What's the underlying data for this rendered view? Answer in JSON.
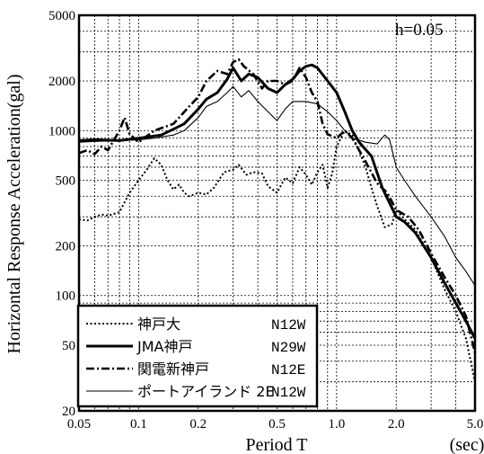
{
  "chart_data": {
    "type": "line",
    "title": "",
    "xlabel": "Period T",
    "xunit": "(sec)",
    "ylabel": "Horizontal Response Acceleration(gal)",
    "annotation": "h=0.05",
    "xscale": "log",
    "yscale": "log",
    "xlim": [
      0.05,
      5.0
    ],
    "ylim": [
      20,
      5000
    ],
    "grid": true,
    "legend_position": "bottom-left",
    "x_ticks": [
      0.05,
      0.1,
      0.2,
      0.5,
      1.0,
      2.0,
      5.0
    ],
    "x_tick_labels": [
      "0.05",
      "0.1",
      "0.2",
      "0.5",
      "1.0",
      "2.0",
      "5.0"
    ],
    "y_ticks": [
      20,
      50,
      100,
      200,
      500,
      1000,
      2000,
      5000
    ],
    "y_tick_labels": [
      "20",
      "50",
      "100",
      "200",
      "500",
      "1000",
      "2000",
      "5000"
    ],
    "series": [
      {
        "name": "神戸大",
        "component": "N12W",
        "style": "dotted",
        "points": [
          [
            0.05,
            290
          ],
          [
            0.055,
            285
          ],
          [
            0.06,
            300
          ],
          [
            0.065,
            310
          ],
          [
            0.07,
            305
          ],
          [
            0.08,
            320
          ],
          [
            0.09,
            420
          ],
          [
            0.1,
            500
          ],
          [
            0.11,
            580
          ],
          [
            0.12,
            680
          ],
          [
            0.13,
            620
          ],
          [
            0.14,
            500
          ],
          [
            0.15,
            440
          ],
          [
            0.16,
            470
          ],
          [
            0.17,
            420
          ],
          [
            0.18,
            400
          ],
          [
            0.2,
            420
          ],
          [
            0.22,
            410
          ],
          [
            0.24,
            450
          ],
          [
            0.27,
            560
          ],
          [
            0.3,
            580
          ],
          [
            0.32,
            620
          ],
          [
            0.35,
            540
          ],
          [
            0.38,
            560
          ],
          [
            0.42,
            550
          ],
          [
            0.45,
            460
          ],
          [
            0.5,
            420
          ],
          [
            0.55,
            520
          ],
          [
            0.6,
            480
          ],
          [
            0.65,
            600
          ],
          [
            0.7,
            540
          ],
          [
            0.75,
            470
          ],
          [
            0.8,
            560
          ],
          [
            0.85,
            620
          ],
          [
            0.9,
            450
          ],
          [
            0.95,
            550
          ],
          [
            1.0,
            800
          ],
          [
            1.1,
            1000
          ],
          [
            1.2,
            940
          ],
          [
            1.3,
            750
          ],
          [
            1.4,
            600
          ],
          [
            1.5,
            450
          ],
          [
            1.6,
            350
          ],
          [
            1.75,
            260
          ],
          [
            1.9,
            270
          ],
          [
            2.0,
            330
          ],
          [
            2.2,
            290
          ],
          [
            2.5,
            250
          ],
          [
            3.0,
            170
          ],
          [
            3.5,
            110
          ],
          [
            4.0,
            80
          ],
          [
            4.5,
            55
          ],
          [
            5.0,
            30
          ]
        ]
      },
      {
        "name": "JMA神戸",
        "component": "N29W",
        "style": "thick",
        "points": [
          [
            0.05,
            870
          ],
          [
            0.06,
            880
          ],
          [
            0.08,
            870
          ],
          [
            0.1,
            900
          ],
          [
            0.13,
            940
          ],
          [
            0.15,
            1020
          ],
          [
            0.17,
            1100
          ],
          [
            0.2,
            1350
          ],
          [
            0.22,
            1550
          ],
          [
            0.25,
            1700
          ],
          [
            0.28,
            2050
          ],
          [
            0.3,
            2400
          ],
          [
            0.33,
            2000
          ],
          [
            0.36,
            2200
          ],
          [
            0.4,
            2100
          ],
          [
            0.45,
            1800
          ],
          [
            0.5,
            1700
          ],
          [
            0.55,
            1900
          ],
          [
            0.6,
            2050
          ],
          [
            0.65,
            2300
          ],
          [
            0.7,
            2450
          ],
          [
            0.75,
            2500
          ],
          [
            0.8,
            2400
          ],
          [
            0.9,
            2000
          ],
          [
            1.0,
            1700
          ],
          [
            1.1,
            1300
          ],
          [
            1.2,
            1000
          ],
          [
            1.3,
            850
          ],
          [
            1.5,
            700
          ],
          [
            1.7,
            450
          ],
          [
            1.8,
            390
          ],
          [
            2.0,
            300
          ],
          [
            2.2,
            280
          ],
          [
            2.5,
            240
          ],
          [
            3.0,
            170
          ],
          [
            3.5,
            120
          ],
          [
            4.0,
            90
          ],
          [
            4.5,
            70
          ],
          [
            5.0,
            55
          ]
        ]
      },
      {
        "name": "関電新神戸",
        "component": "N12E",
        "style": "dashdot",
        "points": [
          [
            0.05,
            730
          ],
          [
            0.055,
            760
          ],
          [
            0.06,
            720
          ],
          [
            0.065,
            800
          ],
          [
            0.07,
            760
          ],
          [
            0.08,
            1000
          ],
          [
            0.085,
            1200
          ],
          [
            0.09,
            950
          ],
          [
            0.1,
            850
          ],
          [
            0.12,
            1000
          ],
          [
            0.15,
            1100
          ],
          [
            0.18,
            1400
          ],
          [
            0.2,
            1600
          ],
          [
            0.22,
            2000
          ],
          [
            0.25,
            2300
          ],
          [
            0.28,
            2200
          ],
          [
            0.3,
            2600
          ],
          [
            0.32,
            2700
          ],
          [
            0.34,
            2450
          ],
          [
            0.38,
            2200
          ],
          [
            0.42,
            1800
          ],
          [
            0.45,
            2000
          ],
          [
            0.5,
            2000
          ],
          [
            0.55,
            1900
          ],
          [
            0.6,
            2000
          ],
          [
            0.65,
            2400
          ],
          [
            0.7,
            2100
          ],
          [
            0.75,
            1700
          ],
          [
            0.8,
            1500
          ],
          [
            0.85,
            1100
          ],
          [
            0.9,
            950
          ],
          [
            1.0,
            900
          ],
          [
            1.1,
            1000
          ],
          [
            1.2,
            900
          ],
          [
            1.4,
            650
          ],
          [
            1.6,
            480
          ],
          [
            1.8,
            420
          ],
          [
            2.0,
            330
          ],
          [
            2.3,
            300
          ],
          [
            2.6,
            250
          ],
          [
            3.0,
            180
          ],
          [
            3.5,
            130
          ],
          [
            4.0,
            100
          ],
          [
            4.5,
            75
          ],
          [
            5.0,
            45
          ]
        ]
      },
      {
        "name": "ポートアイランド 2E",
        "component": "N12W",
        "style": "thin",
        "points": [
          [
            0.05,
            850
          ],
          [
            0.06,
            860
          ],
          [
            0.08,
            870
          ],
          [
            0.1,
            880
          ],
          [
            0.12,
            900
          ],
          [
            0.15,
            940
          ],
          [
            0.17,
            1000
          ],
          [
            0.2,
            1200
          ],
          [
            0.22,
            1400
          ],
          [
            0.25,
            1500
          ],
          [
            0.28,
            1700
          ],
          [
            0.3,
            1850
          ],
          [
            0.33,
            1600
          ],
          [
            0.36,
            1750
          ],
          [
            0.4,
            1500
          ],
          [
            0.45,
            1300
          ],
          [
            0.5,
            1150
          ],
          [
            0.55,
            1350
          ],
          [
            0.6,
            1500
          ],
          [
            0.7,
            1500
          ],
          [
            0.8,
            1450
          ],
          [
            0.9,
            1300
          ],
          [
            1.0,
            1150
          ],
          [
            1.1,
            1000
          ],
          [
            1.2,
            900
          ],
          [
            1.4,
            850
          ],
          [
            1.6,
            830
          ],
          [
            1.75,
            940
          ],
          [
            1.85,
            880
          ],
          [
            2.0,
            600
          ],
          [
            2.2,
            500
          ],
          [
            2.5,
            400
          ],
          [
            3.0,
            300
          ],
          [
            3.5,
            230
          ],
          [
            4.0,
            170
          ],
          [
            4.5,
            140
          ],
          [
            5.0,
            115
          ]
        ]
      }
    ]
  }
}
